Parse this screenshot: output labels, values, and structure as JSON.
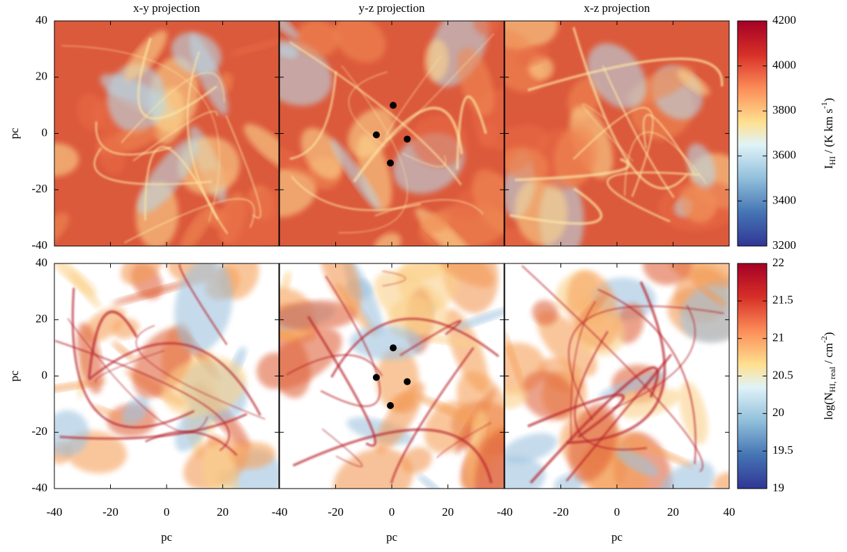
{
  "chart_data": {
    "type": "heatmap",
    "panel_titles": [
      "x-y projection",
      "y-z projection",
      "x-z projection"
    ],
    "xlabel": "pc",
    "ylabel": "pc",
    "xlim": [
      -40,
      40
    ],
    "ylim": [
      -40,
      40
    ],
    "xticks": [
      -40,
      -20,
      0,
      20,
      40
    ],
    "yticks": [
      -40,
      -20,
      0,
      20,
      40
    ],
    "rows": [
      {
        "colorbar_label": [
          {
            "text": "I"
          },
          {
            "text": "HI",
            "style": "sub"
          },
          {
            "text": " / (K km s"
          },
          {
            "text": "-1",
            "style": "sup"
          },
          {
            "text": ")"
          }
        ],
        "clim": [
          3200,
          4200
        ],
        "cticks": [
          3200,
          3400,
          3600,
          3800,
          4000,
          4200
        ]
      },
      {
        "colorbar_label": [
          {
            "text": "log(N"
          },
          {
            "text": "HI, real",
            "style": "sub"
          },
          {
            "text": " / cm"
          },
          {
            "text": "-2",
            "style": "sup"
          },
          {
            "text": ")"
          }
        ],
        "clim": [
          19,
          22
        ],
        "cticks": [
          19,
          19.5,
          20,
          20.5,
          21,
          21.5,
          22
        ]
      }
    ],
    "markers": {
      "panel": 1,
      "color": "#000000",
      "x": [
        0.5,
        -5.5,
        5.5,
        -0.5
      ],
      "y": [
        10,
        -0.5,
        -2,
        -10.5
      ]
    }
  }
}
